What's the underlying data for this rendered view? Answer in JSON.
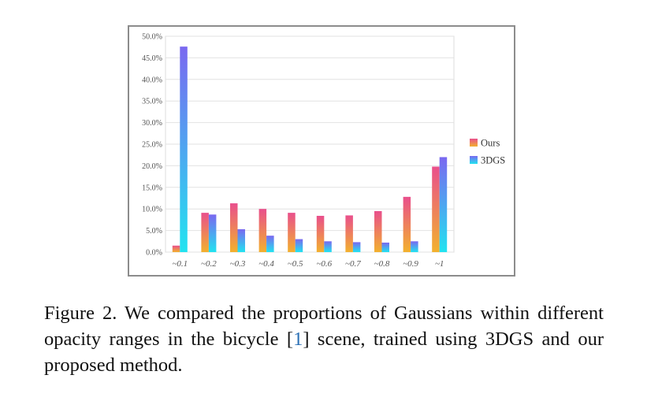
{
  "chart_data": {
    "type": "bar",
    "categories": [
      "~0.1",
      "~0.2",
      "~0.3",
      "~0.4",
      "~0.5",
      "~0.6",
      "~0.7",
      "~0.8",
      "~0.9",
      "~1"
    ],
    "series": [
      {
        "name": "Ours",
        "values": [
          1.5,
          9.1,
          11.3,
          10.0,
          9.1,
          8.4,
          8.5,
          9.5,
          12.8,
          19.8
        ],
        "gradient": [
          "#f2b12e",
          "#e94f8c"
        ]
      },
      {
        "name": "3DGS",
        "values": [
          47.6,
          8.7,
          5.3,
          3.8,
          3.0,
          2.5,
          2.3,
          2.2,
          2.5,
          22.0
        ],
        "gradient": [
          "#22e3f0",
          "#7a68f0"
        ]
      }
    ],
    "yticks": [
      "0.0%",
      "5.0%",
      "10.0%",
      "15.0%",
      "20.0%",
      "25.0%",
      "30.0%",
      "35.0%",
      "40.0%",
      "45.0%",
      "50.0%"
    ],
    "ylim": [
      0,
      50
    ],
    "grid": true,
    "legend": "right"
  },
  "caption": {
    "before": "Figure 2.  We compared the proportions of Gaussians within different opacity ranges in the bicycle [",
    "ref": "1",
    "after": "] scene, trained using 3DGS and our proposed method."
  }
}
